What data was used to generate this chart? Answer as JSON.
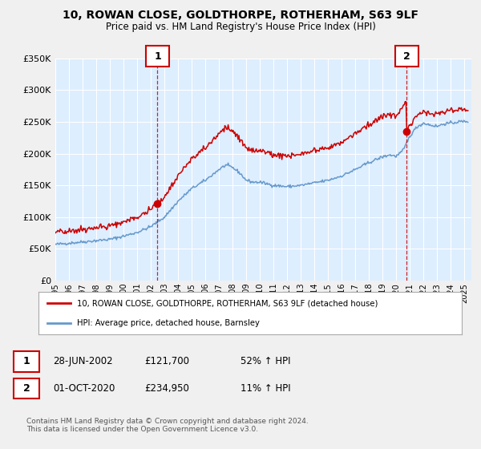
{
  "title": "10, ROWAN CLOSE, GOLDTHORPE, ROTHERHAM, S63 9LF",
  "subtitle": "Price paid vs. HM Land Registry's House Price Index (HPI)",
  "red_label": "10, ROWAN CLOSE, GOLDTHORPE, ROTHERHAM, S63 9LF (detached house)",
  "blue_label": "HPI: Average price, detached house, Barnsley",
  "sale1_date": "28-JUN-2002",
  "sale1_price": 121700,
  "sale1_hpi": "52% ↑ HPI",
  "sale2_date": "01-OCT-2020",
  "sale2_price": 234950,
  "sale2_hpi": "11% ↑ HPI",
  "footer": "Contains HM Land Registry data © Crown copyright and database right 2024.\nThis data is licensed under the Open Government Licence v3.0.",
  "ylim": [
    0,
    350000
  ],
  "yticks": [
    0,
    50000,
    100000,
    150000,
    200000,
    250000,
    300000,
    350000
  ],
  "xlim_start": 1995.0,
  "xlim_end": 2025.5,
  "red_color": "#cc0000",
  "blue_color": "#6699cc",
  "bg_color": "#ddeeff",
  "plot_bg": "#f0f0f0",
  "grid_color": "#ffffff",
  "sale1_x": 2002.49,
  "sale1_y": 121700,
  "sale2_x": 2020.75,
  "sale2_y": 234950
}
